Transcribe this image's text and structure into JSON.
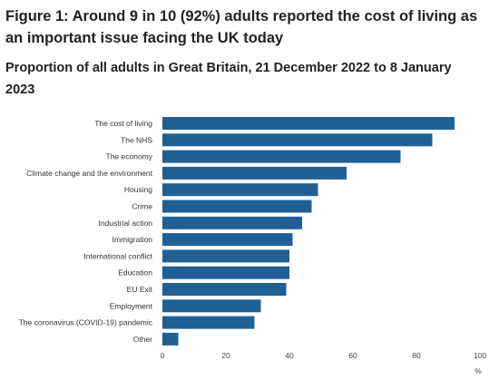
{
  "title": "Figure 1: Around 9 in 10 (92%) adults reported the cost of living as an important issue facing the UK today",
  "subtitle": "Proportion of all adults in Great Britain, 21 December 2022 to 8 January 2023",
  "chart_data": {
    "type": "bar",
    "orientation": "horizontal",
    "categories": [
      "The cost of living",
      "The NHS",
      "The economy",
      "Climate change and the environment",
      "Housing",
      "Crime",
      "Industrial action",
      "Immigration",
      "International conflict",
      "Education",
      "EU Exit",
      "Employment",
      "The coronavirus (COVID-19) pandemic",
      "Other"
    ],
    "values": [
      92,
      85,
      75,
      58,
      49,
      47,
      44,
      41,
      40,
      40,
      39,
      31,
      29,
      5
    ],
    "xlabel": "%",
    "ylabel": "",
    "xlim": [
      0,
      100
    ],
    "xticks": [
      0,
      20,
      40,
      60,
      80,
      100
    ],
    "bar_color": "#206095",
    "grid": false,
    "legend": "none"
  }
}
